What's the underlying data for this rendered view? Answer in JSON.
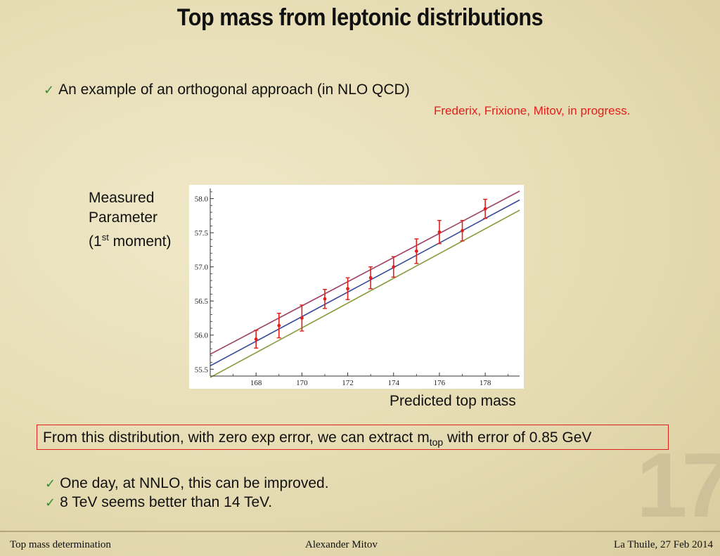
{
  "slide": {
    "title": "Top mass from leptonic distributions",
    "bullet1": "An example of an orthogonal approach (in NLO QCD)",
    "reference": "Frederix, Frixione, Mitov, in progress.",
    "ylabel_line1": "Measured",
    "ylabel_line2": "Parameter",
    "ylabel_pre": "(1",
    "ylabel_sup": "st",
    "ylabel_post": " moment)",
    "xlabel": "Predicted top mass",
    "box_pre": "From this distribution, with zero exp error, we can extract m",
    "box_sub": "top",
    "box_post": " with error of 0.85 GeV",
    "bullet2": "One day, at NNLO, this can be improved.",
    "bullet3": "8 TeV seems better than 14 TeV.",
    "slide_number": "17",
    "check_icon": "✓"
  },
  "footer": {
    "left": "Top mass determination",
    "center": "Alexander Mitov",
    "right": "La Thuile, 27 Feb 2014"
  },
  "colors": {
    "check": "#2f8f2f",
    "reference": "#e0201a",
    "points": "#e0201a",
    "line_upper": "#a0406a",
    "line_middle": "#3a4a9a",
    "line_lower": "#8a9a3a"
  },
  "chart_data": {
    "type": "scatter",
    "xlim": [
      166,
      179.5
    ],
    "ylim": [
      55.4,
      58.15
    ],
    "x_ticks": [
      168,
      170,
      172,
      174,
      176,
      178
    ],
    "y_ticks": [
      55.5,
      56.0,
      56.5,
      57.0,
      57.5,
      58.0
    ],
    "x_tick_labels": [
      "168",
      "170",
      "172",
      "174",
      "176",
      "178"
    ],
    "y_tick_labels": [
      "55.5",
      "56.0",
      "56.5",
      "57.0",
      "57.5",
      "58.0"
    ],
    "grid": false,
    "points": [
      {
        "x": 168,
        "y": 55.94,
        "err": 0.13
      },
      {
        "x": 169,
        "y": 56.14,
        "err": 0.18
      },
      {
        "x": 170,
        "y": 56.25,
        "err": 0.19
      },
      {
        "x": 171,
        "y": 56.53,
        "err": 0.14
      },
      {
        "x": 172,
        "y": 56.68,
        "err": 0.16
      },
      {
        "x": 173,
        "y": 56.84,
        "err": 0.16
      },
      {
        "x": 174,
        "y": 57.0,
        "err": 0.15
      },
      {
        "x": 175,
        "y": 57.23,
        "err": 0.18
      },
      {
        "x": 176,
        "y": 57.51,
        "err": 0.17
      },
      {
        "x": 177,
        "y": 57.53,
        "err": 0.15
      },
      {
        "x": 178,
        "y": 57.85,
        "err": 0.14
      }
    ],
    "lines": [
      {
        "x": [
          166,
          179.5
        ],
        "y": [
          55.72,
          58.11
        ]
      },
      {
        "x": [
          166,
          179.5
        ],
        "y": [
          55.55,
          57.98
        ]
      },
      {
        "x": [
          166,
          179.5
        ],
        "y": [
          55.38,
          57.83
        ]
      }
    ]
  }
}
